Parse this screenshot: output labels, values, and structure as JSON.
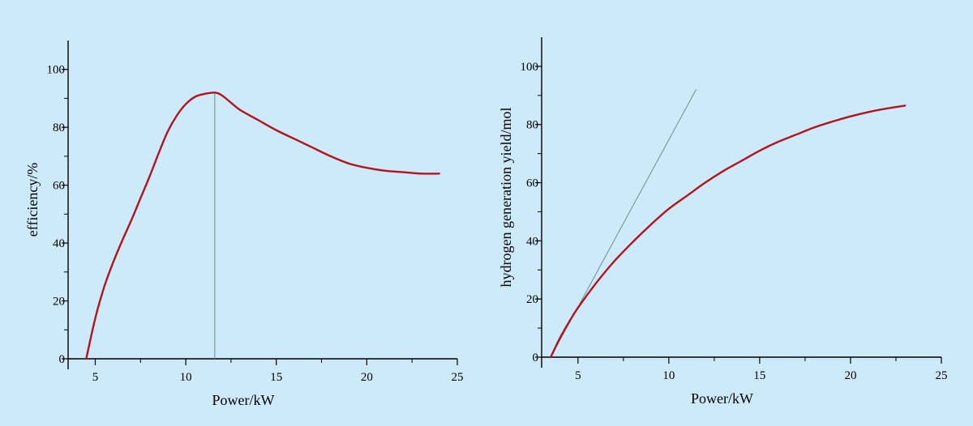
{
  "colors": {
    "background": "#cdeafb",
    "axis": "#000000",
    "curve": "#b5121b",
    "guide": "#6f8f8a"
  },
  "chart_data": [
    {
      "type": "line",
      "xlabel": "Power/kW",
      "ylabel": "efficiency/%",
      "xlim": [
        3.5,
        25
      ],
      "ylim": [
        0,
        110
      ],
      "xticks": [
        5,
        10,
        15,
        20,
        25
      ],
      "yticks": [
        0,
        20,
        40,
        60,
        80,
        100
      ],
      "grid": false,
      "legend": "none",
      "series": [
        {
          "color": "#b5121b",
          "x": [
            4.5,
            5,
            5.5,
            6,
            6.5,
            7,
            7.5,
            8,
            8.5,
            9,
            9.5,
            10,
            10.5,
            11,
            11.6,
            12,
            12.5,
            13,
            14,
            15,
            16,
            17,
            18,
            19,
            20,
            21,
            22,
            23,
            24
          ],
          "y": [
            0,
            14,
            25,
            33.5,
            41,
            48,
            55.5,
            63,
            71,
            78.5,
            84,
            88,
            90.5,
            91.5,
            92,
            91,
            88.5,
            86,
            82.5,
            79,
            76,
            73,
            70,
            67.5,
            66,
            65,
            64.5,
            64,
            64
          ]
        }
      ],
      "annotations": [
        {
          "type": "vline",
          "x": 11.6,
          "y0": 0,
          "y1": 92
        }
      ]
    },
    {
      "type": "line",
      "xlabel": "Power/kW",
      "ylabel": "hydrogen generation yield/mol",
      "xlim": [
        3,
        25
      ],
      "ylim": [
        0,
        110
      ],
      "xticks": [
        5,
        10,
        15,
        20,
        25
      ],
      "yticks": [
        0,
        20,
        40,
        60,
        80,
        100
      ],
      "grid": false,
      "legend": "none",
      "series": [
        {
          "color": "#b5121b",
          "x": [
            3.5,
            4,
            4.5,
            5,
            6,
            7,
            8,
            9,
            10,
            11,
            12,
            13,
            14,
            15,
            16,
            17,
            18,
            19,
            20,
            21,
            22,
            23
          ],
          "y": [
            0,
            6.5,
            12,
            17,
            25.5,
            33,
            39.5,
            45.5,
            51,
            55.5,
            60,
            64,
            67.5,
            71,
            74,
            76.5,
            79,
            81,
            82.8,
            84.3,
            85.5,
            86.5
          ]
        }
      ],
      "annotations": [
        {
          "type": "line",
          "x": [
            3.5,
            11.5
          ],
          "y": [
            0,
            92
          ]
        }
      ]
    }
  ]
}
